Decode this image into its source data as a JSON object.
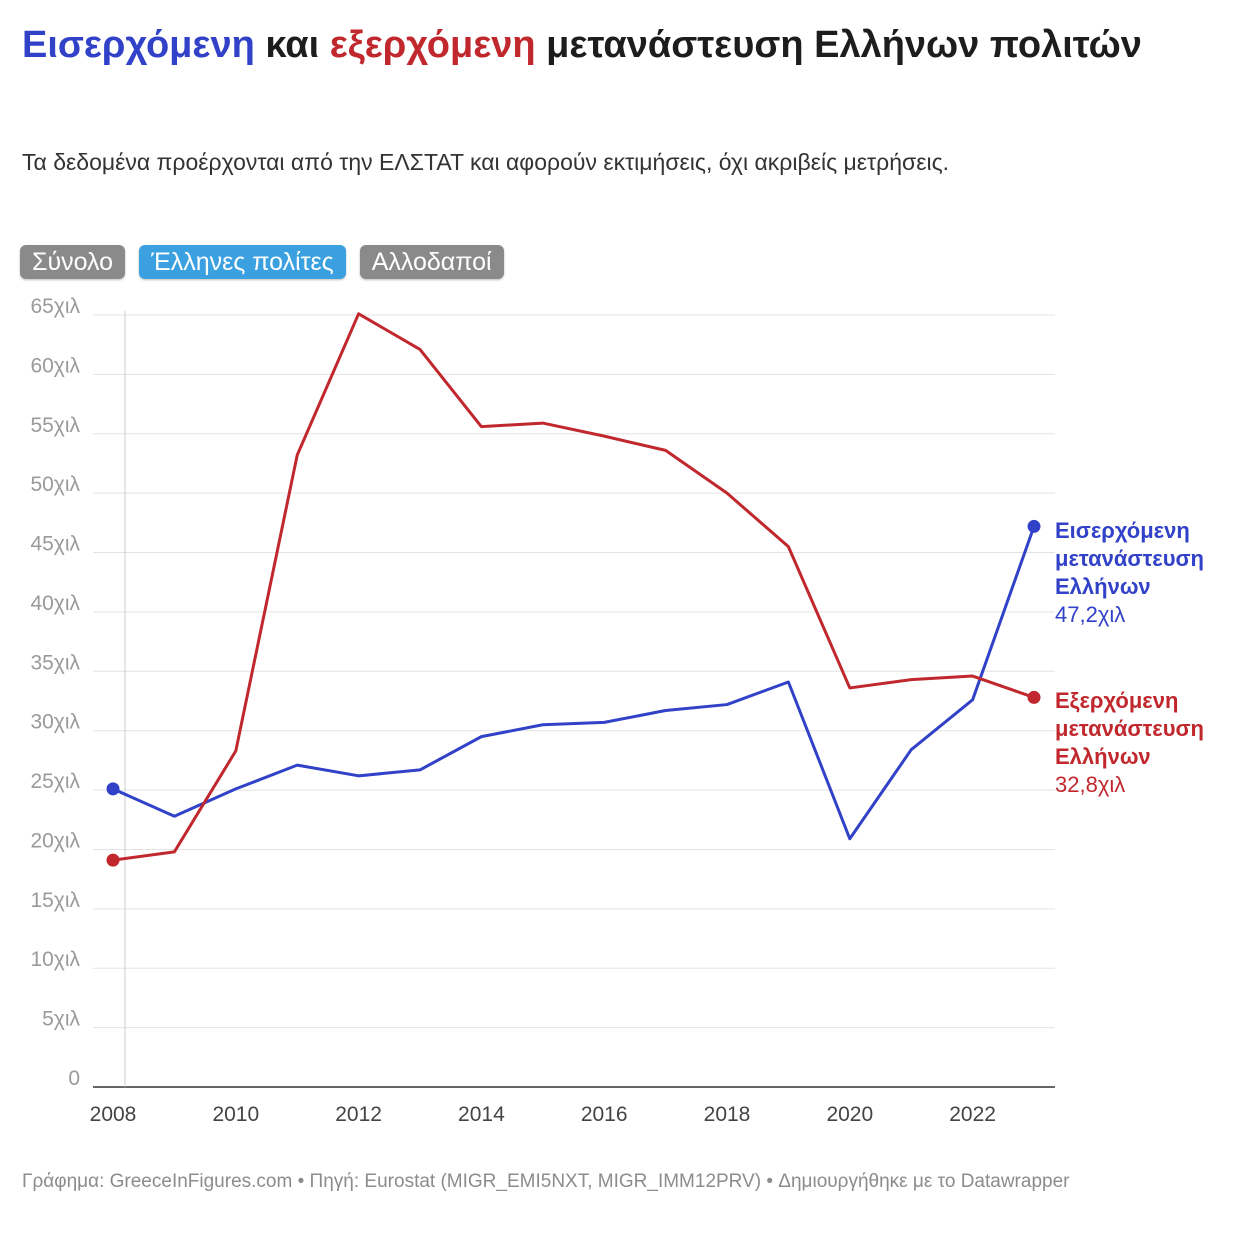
{
  "title": {
    "part1": "Εισερχόμενη",
    "part2": " και ",
    "part3": "εξερχόμενη",
    "part4": " μετανάστευση Ελλήνων πολιτών"
  },
  "subtitle": "Τα δεδομένα προέρχονται από την ΕΛΣΤΑΤ και αφορούν εκτιμήσεις, όχι ακριβείς μετρήσεις.",
  "tabs": [
    {
      "label": "Σύνολο",
      "active": false
    },
    {
      "label": "Έλληνες πολίτες",
      "active": true
    },
    {
      "label": "Αλλοδαποί",
      "active": false
    }
  ],
  "footer": "Γράφημα: GreeceInFigures.com • Πηγή: Eurostat (MIGR_EMI5NXT, MIGR_IMM12PRV) • Δημιουργήθηκε με το Datawrapper",
  "colors": {
    "blue": "#3142c8",
    "red": "#c0282d",
    "grid": "#e3e3e3",
    "tick": "#9a9a9a"
  },
  "chart_data": {
    "type": "line",
    "x": [
      2008,
      2009,
      2010,
      2011,
      2012,
      2013,
      2014,
      2015,
      2016,
      2017,
      2018,
      2019,
      2020,
      2021,
      2022,
      2023
    ],
    "x_ticks": [
      2008,
      2010,
      2012,
      2014,
      2016,
      2018,
      2020,
      2022
    ],
    "x_tick_labels": [
      "2008",
      "2010",
      "2012",
      "2014",
      "2016",
      "2018",
      "2020",
      "2022"
    ],
    "y_ticks": [
      0,
      5000,
      10000,
      15000,
      20000,
      25000,
      30000,
      35000,
      40000,
      45000,
      50000,
      55000,
      60000,
      65000
    ],
    "y_tick_labels": [
      "0",
      "5χιλ",
      "10χιλ",
      "15χιλ",
      "20χιλ",
      "25χιλ",
      "30χιλ",
      "35χιλ",
      "40χιλ",
      "45χιλ",
      "50χιλ",
      "55χιλ",
      "60χιλ",
      "65χιλ"
    ],
    "ylim": [
      0,
      65000
    ],
    "xlim": [
      2008,
      2023
    ],
    "grid": true,
    "series": [
      {
        "key": "immigration",
        "label_lines": [
          "Εισερχόμενη",
          "μετανάστευση",
          "Ελλήνων"
        ],
        "last_value_label": "47,2χιλ",
        "color": "#3142c8",
        "values": [
          25100,
          22800,
          25100,
          27100,
          26200,
          26700,
          29500,
          30500,
          30700,
          31700,
          32200,
          34100,
          20900,
          28400,
          32600,
          47200
        ]
      },
      {
        "key": "emigration",
        "label_lines": [
          "Εξερχόμενη",
          "μετανάστευση",
          "Ελλήνων"
        ],
        "last_value_label": "32,8χιλ",
        "color": "#c0282d",
        "values": [
          19100,
          19800,
          28300,
          53200,
          65100,
          62100,
          55600,
          55900,
          54800,
          53600,
          50000,
          45500,
          33600,
          34300,
          34600,
          32800
        ]
      }
    ]
  }
}
